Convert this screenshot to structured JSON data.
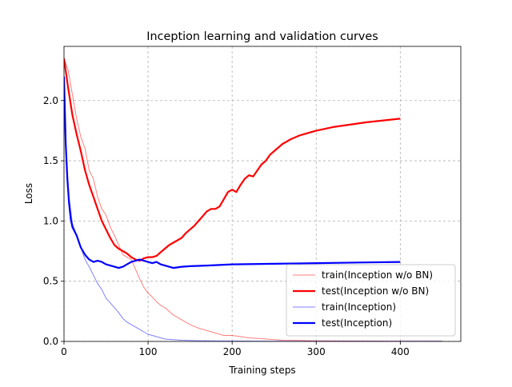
{
  "chart_data": {
    "type": "line",
    "title": "Inception learning and validation curves",
    "xlabel": "Training steps",
    "ylabel": "Loss",
    "xlim": [
      0,
      472
    ],
    "ylim": [
      0,
      2.45
    ],
    "xticks": [
      0,
      100,
      200,
      300,
      400
    ],
    "xtick_labels": [
      "0",
      "100",
      "200",
      "300",
      "400"
    ],
    "yticks": [
      0.0,
      0.5,
      1.0,
      1.5,
      2.0
    ],
    "ytick_labels": [
      "0.0",
      "0.5",
      "1.0",
      "1.5",
      "2.0"
    ],
    "grid": true,
    "legend_position": "lower-right",
    "series": [
      {
        "name": "train(Inception w/o BN)",
        "color": "#ff0000",
        "opacity": 0.5,
        "width": 1,
        "x": [
          0,
          5,
          10,
          15,
          20,
          25,
          30,
          35,
          40,
          45,
          50,
          55,
          60,
          65,
          70,
          75,
          80,
          85,
          90,
          95,
          100,
          105,
          110,
          115,
          120,
          130,
          140,
          150,
          160,
          170,
          180,
          190,
          200,
          210,
          220,
          240,
          260,
          280,
          300,
          350,
          400,
          450
        ],
        "y": [
          2.35,
          2.25,
          2.05,
          1.85,
          1.7,
          1.6,
          1.42,
          1.35,
          1.2,
          1.1,
          1.05,
          0.95,
          0.88,
          0.8,
          0.72,
          0.7,
          0.68,
          0.6,
          0.52,
          0.45,
          0.4,
          0.37,
          0.33,
          0.3,
          0.28,
          0.22,
          0.18,
          0.14,
          0.11,
          0.09,
          0.07,
          0.05,
          0.05,
          0.04,
          0.03,
          0.02,
          0.01,
          0.008,
          0.005,
          0.003,
          0.002,
          0.001
        ]
      },
      {
        "name": "test(Inception w/o BN)",
        "color": "#ff0000",
        "opacity": 1,
        "width": 2.2,
        "x": [
          0,
          5,
          10,
          15,
          20,
          25,
          30,
          35,
          40,
          45,
          50,
          55,
          60,
          65,
          70,
          75,
          80,
          85,
          90,
          95,
          100,
          105,
          110,
          115,
          120,
          125,
          130,
          135,
          140,
          145,
          150,
          155,
          160,
          165,
          170,
          175,
          180,
          185,
          190,
          195,
          200,
          205,
          210,
          215,
          220,
          225,
          230,
          235,
          240,
          245,
          250,
          260,
          270,
          280,
          290,
          300,
          320,
          340,
          360,
          380,
          400
        ],
        "y": [
          2.35,
          2.1,
          1.88,
          1.72,
          1.58,
          1.42,
          1.3,
          1.2,
          1.1,
          1.0,
          0.93,
          0.86,
          0.8,
          0.77,
          0.75,
          0.73,
          0.7,
          0.68,
          0.67,
          0.69,
          0.7,
          0.7,
          0.71,
          0.74,
          0.77,
          0.8,
          0.82,
          0.84,
          0.86,
          0.9,
          0.93,
          0.96,
          1.0,
          1.04,
          1.08,
          1.1,
          1.1,
          1.12,
          1.18,
          1.24,
          1.26,
          1.24,
          1.3,
          1.35,
          1.38,
          1.37,
          1.42,
          1.47,
          1.5,
          1.55,
          1.58,
          1.64,
          1.68,
          1.71,
          1.73,
          1.75,
          1.78,
          1.8,
          1.82,
          1.835,
          1.85
        ]
      },
      {
        "name": "train(Inception)",
        "color": "#0000ff",
        "opacity": 0.5,
        "width": 1,
        "x": [
          0,
          3,
          6,
          10,
          15,
          20,
          25,
          30,
          35,
          40,
          45,
          50,
          55,
          60,
          65,
          70,
          75,
          80,
          85,
          90,
          95,
          100,
          105,
          110,
          115,
          120,
          130,
          140,
          150,
          160,
          180,
          200,
          250,
          300,
          400,
          450
        ],
        "y": [
          2.1,
          1.5,
          1.2,
          0.98,
          0.88,
          0.78,
          0.68,
          0.62,
          0.55,
          0.48,
          0.43,
          0.36,
          0.32,
          0.28,
          0.24,
          0.19,
          0.16,
          0.14,
          0.12,
          0.1,
          0.08,
          0.06,
          0.05,
          0.04,
          0.03,
          0.02,
          0.015,
          0.01,
          0.008,
          0.006,
          0.004,
          0.003,
          0.002,
          0.001,
          0.001,
          0.001
        ]
      },
      {
        "name": "test(Inception)",
        "color": "#0000ff",
        "opacity": 1,
        "width": 2.2,
        "x": [
          0,
          2,
          4,
          6,
          8,
          10,
          15,
          20,
          25,
          30,
          35,
          40,
          45,
          50,
          55,
          60,
          65,
          70,
          75,
          80,
          85,
          90,
          95,
          100,
          105,
          110,
          115,
          120,
          125,
          130,
          140,
          150,
          170,
          200,
          250,
          300,
          350,
          400
        ],
        "y": [
          2.2,
          1.65,
          1.35,
          1.15,
          1.02,
          0.95,
          0.88,
          0.78,
          0.72,
          0.68,
          0.66,
          0.67,
          0.66,
          0.64,
          0.63,
          0.62,
          0.61,
          0.62,
          0.64,
          0.66,
          0.67,
          0.68,
          0.67,
          0.66,
          0.65,
          0.66,
          0.64,
          0.63,
          0.62,
          0.61,
          0.62,
          0.625,
          0.63,
          0.64,
          0.645,
          0.65,
          0.655,
          0.66
        ]
      }
    ]
  }
}
